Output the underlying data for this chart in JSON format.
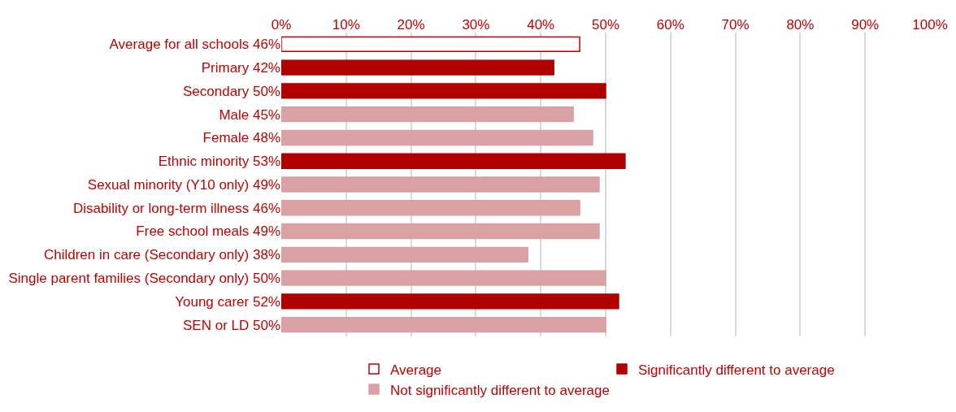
{
  "chart_data": {
    "type": "bar",
    "orientation": "horizontal",
    "categories": [
      "Average for all schools 46%",
      "Primary 42%",
      "Secondary 50%",
      "Male 45%",
      "Female 48%",
      "Ethnic minority 53%",
      "Sexual minority (Y10 only) 49%",
      "Disability or long-term illness 46%",
      "Free school meals 49%",
      "Children in care (Secondary only) 38%",
      "Single parent families (Secondary only) 50%",
      "Young carer 52%",
      "SEN or LD 50%"
    ],
    "series": [
      {
        "name": "Average",
        "color": "#ffffff",
        "values": [
          46,
          null,
          null,
          null,
          null,
          null,
          null,
          null,
          null,
          null,
          null,
          null,
          null
        ]
      },
      {
        "name": "Significantly different to average",
        "color": "#b00000",
        "values": [
          null,
          42,
          50,
          null,
          null,
          53,
          null,
          null,
          null,
          null,
          null,
          52,
          null
        ]
      },
      {
        "name": "Not significantly different to average",
        "color": "#d9a1a4",
        "values": [
          null,
          null,
          null,
          45,
          48,
          null,
          49,
          46,
          49,
          38,
          50,
          null,
          50
        ]
      }
    ],
    "xlim": [
      0,
      100
    ],
    "xticks": [
      {
        "value": 0,
        "label": "0%"
      },
      {
        "value": 10,
        "label": "10%"
      },
      {
        "value": 20,
        "label": "20%"
      },
      {
        "value": 30,
        "label": "30%"
      },
      {
        "value": 40,
        "label": "40%"
      },
      {
        "value": 50,
        "label": "50%"
      },
      {
        "value": 60,
        "label": "60%"
      },
      {
        "value": 70,
        "label": "70%"
      },
      {
        "value": 80,
        "label": "80%"
      },
      {
        "value": 90,
        "label": "90%"
      },
      {
        "value": 100,
        "label": "100%"
      }
    ],
    "grid": "x",
    "legend": "bottom"
  }
}
